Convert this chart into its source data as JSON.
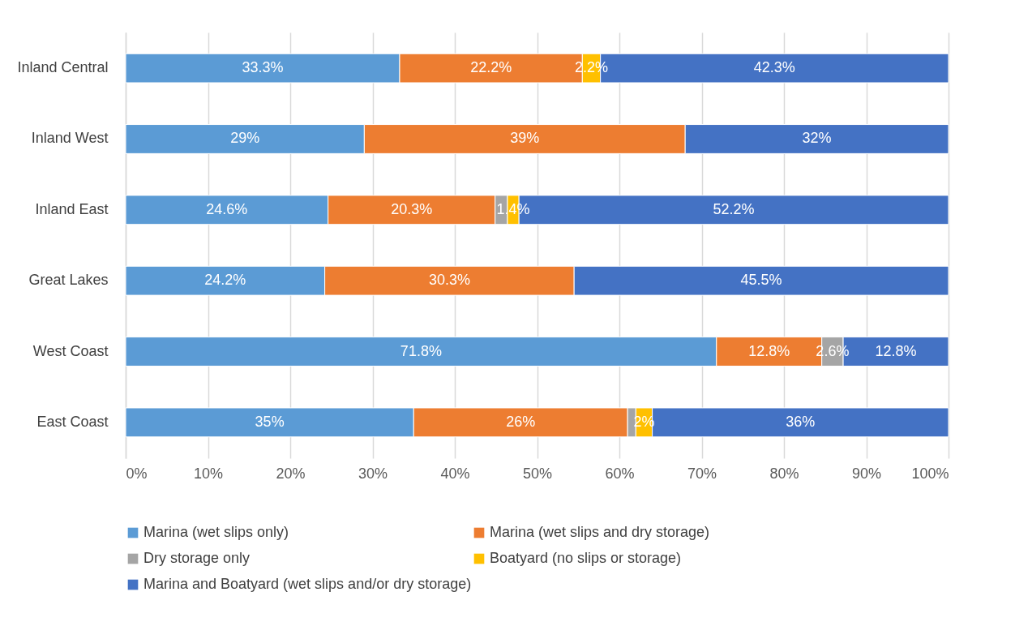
{
  "chart_data": {
    "type": "bar",
    "orientation": "horizontal",
    "stacked": true,
    "categories": [
      "Inland Central",
      "Inland West",
      "Inland East",
      "Great Lakes",
      "West Coast",
      "East Coast"
    ],
    "series": [
      {
        "name": "Marina (wet slips only)",
        "color": "#5b9bd5",
        "values": [
          33.3,
          29,
          24.6,
          24.2,
          71.8,
          35
        ],
        "value_labels": [
          "33.3%",
          "29%",
          "24.6%",
          "24.2%",
          "71.8%",
          "35%"
        ]
      },
      {
        "name": "Marina (wet slips and dry storage)",
        "color": "#ed7d31",
        "values": [
          22.2,
          39,
          20.3,
          30.3,
          12.8,
          26
        ],
        "value_labels": [
          "22.2%",
          "39%",
          "20.3%",
          "30.3%",
          "12.8%",
          "26%"
        ]
      },
      {
        "name": "Dry storage only",
        "color": "#a5a5a5",
        "values": [
          null,
          null,
          1.5,
          null,
          2.6,
          1
        ],
        "value_labels": [
          null,
          null,
          null,
          null,
          "2.6%",
          null
        ]
      },
      {
        "name": "Boatyard (no slips or storage)",
        "color": "#ffc000",
        "values": [
          2.2,
          null,
          1.4,
          null,
          null,
          2
        ],
        "value_labels": [
          "2.2%",
          null,
          "1.4%",
          null,
          null,
          "2%"
        ]
      },
      {
        "name": "Marina and Boatyard (wet slips and/or dry storage)",
        "color": "#4472c4",
        "values": [
          42.3,
          32,
          52.2,
          45.5,
          12.8,
          36
        ],
        "value_labels": [
          "42.3%",
          "32%",
          "52.2%",
          "45.5%",
          "12.8%",
          "36%"
        ]
      }
    ],
    "xlim": [
      0,
      100
    ],
    "xticks": [
      {
        "value": 0,
        "label": "0%"
      },
      {
        "value": 10,
        "label": "10%"
      },
      {
        "value": 20,
        "label": "20%"
      },
      {
        "value": 30,
        "label": "30%"
      },
      {
        "value": 40,
        "label": "40%"
      },
      {
        "value": 50,
        "label": "50%"
      },
      {
        "value": 60,
        "label": "60%"
      },
      {
        "value": 70,
        "label": "70%"
      },
      {
        "value": 80,
        "label": "80%"
      },
      {
        "value": 90,
        "label": "90%"
      },
      {
        "value": 100,
        "label": "100%"
      }
    ],
    "grid": "x",
    "legend": "bottom"
  }
}
